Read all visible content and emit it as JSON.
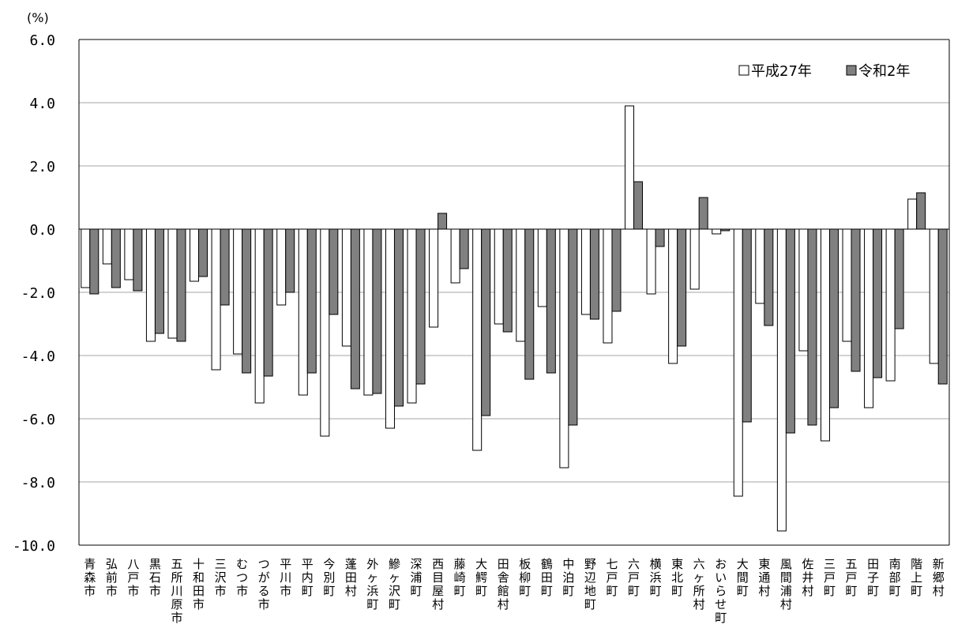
{
  "chart_data": {
    "type": "bar",
    "unit_label": "(%)",
    "ylim": [
      -10,
      6
    ],
    "yticks": [
      "6.0",
      "4.0",
      "2.0",
      "0.0",
      "-2.0",
      "-4.0",
      "-6.0",
      "-8.0",
      "-10.0"
    ],
    "grid": true,
    "legend_position": "top-right",
    "categories": [
      "青森市",
      "弘前市",
      "八戸市",
      "黒石市",
      "五所川原市",
      "十和田市",
      "三沢市",
      "むつ市",
      "つがる市",
      "平川市",
      "平内町",
      "今別町",
      "蓬田村",
      "外ヶ浜町",
      "鰺ヶ沢町",
      "深浦町",
      "西目屋村",
      "藤崎町",
      "大鰐町",
      "田舎館村",
      "板柳町",
      "鶴田町",
      "中泊町",
      "野辺地町",
      "七戸町",
      "六戸町",
      "横浜町",
      "東北町",
      "六ヶ所村",
      "おいらせ町",
      "大間町",
      "東通村",
      "風間浦村",
      "佐井村",
      "三戸町",
      "五戸町",
      "田子町",
      "南部町",
      "階上町",
      "新郷村"
    ],
    "series": [
      {
        "name": "平成27年",
        "color": "#ffffff",
        "values": [
          -1.85,
          -1.1,
          -1.6,
          -3.55,
          -3.45,
          -1.65,
          -4.45,
          -3.95,
          -5.5,
          -2.4,
          -5.25,
          -6.55,
          -3.7,
          -5.25,
          -6.3,
          -5.5,
          -3.1,
          -1.7,
          -7.0,
          -3.0,
          -3.55,
          -2.45,
          -7.55,
          -2.7,
          -3.6,
          3.9,
          -2.05,
          -4.25,
          -1.9,
          -0.15,
          -8.45,
          -2.35,
          -9.55,
          -3.85,
          -6.7,
          -3.55,
          -5.65,
          -4.8,
          0.95,
          -4.25
        ]
      },
      {
        "name": "令和2年",
        "color": "#808080",
        "values": [
          -2.05,
          -1.85,
          -1.95,
          -3.3,
          -3.55,
          -1.5,
          -2.4,
          -4.55,
          -4.65,
          -2.0,
          -4.55,
          -2.7,
          -5.05,
          -5.2,
          -5.6,
          -4.9,
          0.5,
          -1.25,
          -5.9,
          -3.25,
          -4.75,
          -4.55,
          -6.2,
          -2.85,
          -2.6,
          1.5,
          -0.55,
          -3.7,
          1.0,
          -0.05,
          -6.1,
          -3.05,
          -6.45,
          -6.2,
          -5.65,
          -4.5,
          -4.7,
          -3.15,
          1.15,
          -4.9
        ]
      }
    ]
  }
}
